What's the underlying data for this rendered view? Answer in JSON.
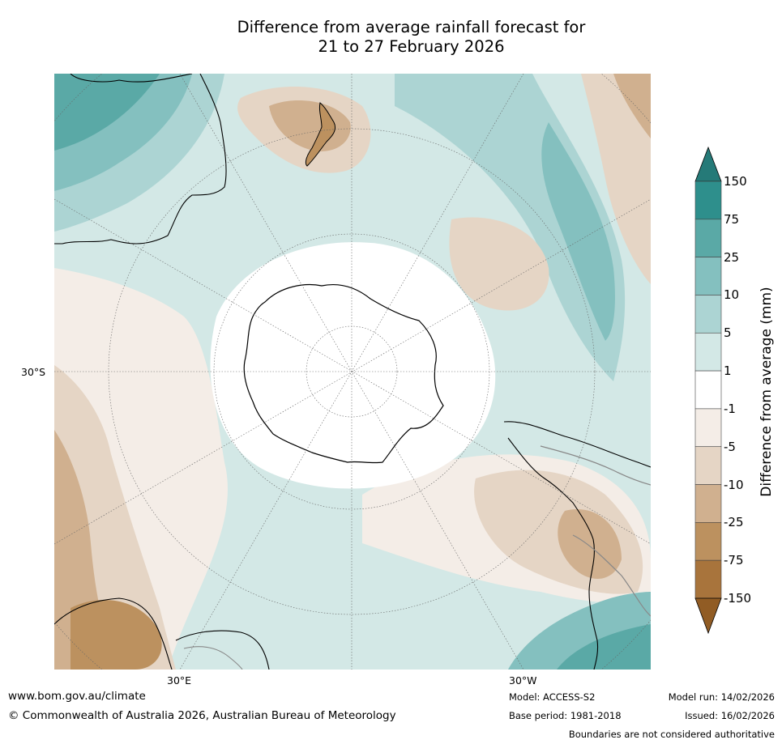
{
  "title": {
    "line1": "Difference from average rainfall forecast for",
    "line2": "21 to 27 February 2026"
  },
  "map": {
    "projection": "south-polar-stereographic",
    "graticule_labels": {
      "left": "30°S",
      "bottom_left": "30°E",
      "bottom_right": "30°W"
    }
  },
  "colorbar": {
    "label": "Difference from average (mm)",
    "ticks": [
      "150",
      "75",
      "25",
      "10",
      "5",
      "1",
      "-1",
      "-5",
      "-10",
      "-25",
      "-75",
      "-150"
    ],
    "bands_top_to_bottom": [
      "#2e8f8c",
      "#5aa9a6",
      "#84c0bf",
      "#acd4d3",
      "#d3e8e6",
      "#ffffff",
      "#f4ede7",
      "#e5d5c5",
      "#d0b08f",
      "#bc915f",
      "#a8743c"
    ],
    "over_color": "#257a78",
    "under_color": "#915c24"
  },
  "footer": {
    "website": "www.bom.gov.au/climate",
    "copyright": "© Commonwealth of Australia 2026, Australian Bureau of Meteorology",
    "model": "Model: ACCESS-S2",
    "base_period": "Base period: 1981-2018",
    "model_run": "Model run: 14/02/2026",
    "issued": "Issued: 16/02/2026",
    "disclaimer": "Boundaries are not considered authoritative"
  }
}
